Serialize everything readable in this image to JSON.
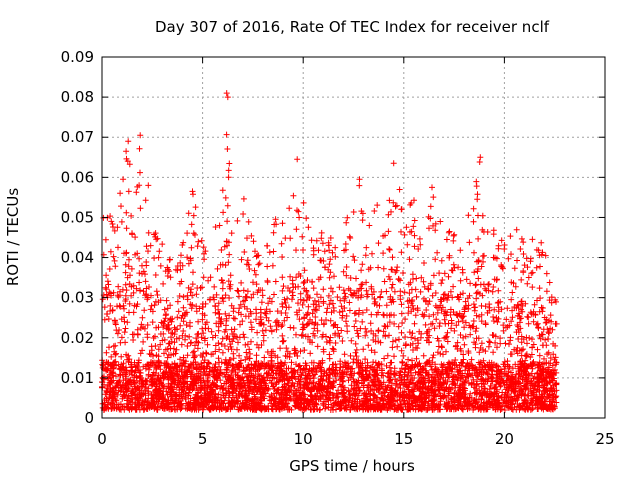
{
  "chart_data": {
    "type": "scatter",
    "title": "Day 307 of 2016, Rate Of TEC Index for receiver nclf",
    "xlabel": "GPS time / hours",
    "ylabel": "ROTI / TECUs",
    "xlim": [
      0,
      25
    ],
    "ylim": [
      0,
      0.09
    ],
    "x_ticks": [
      "0",
      "5",
      "10",
      "15",
      "20",
      "25"
    ],
    "y_ticks": [
      "0",
      "0.01",
      "0.02",
      "0.03",
      "0.04",
      "0.05",
      "0.06",
      "0.07",
      "0.08",
      "0.09"
    ],
    "grid": true,
    "marker": "+",
    "series": [
      {
        "name": "ROTI",
        "color": "#ff0000",
        "x_range": [
          0,
          22.6
        ],
        "baseline_min": 0.002,
        "baseline_typical": 0.01,
        "envelope": [
          [
            0.0,
            0.048
          ],
          [
            0.25,
            0.058
          ],
          [
            0.5,
            0.048
          ],
          [
            0.75,
            0.052
          ],
          [
            1.0,
            0.064
          ],
          [
            1.3,
            0.069
          ],
          [
            1.6,
            0.055
          ],
          [
            1.9,
            0.071
          ],
          [
            2.2,
            0.059
          ],
          [
            2.5,
            0.045
          ],
          [
            2.8,
            0.052
          ],
          [
            3.2,
            0.041
          ],
          [
            3.6,
            0.038
          ],
          [
            4.0,
            0.044
          ],
          [
            4.5,
            0.057
          ],
          [
            5.0,
            0.045
          ],
          [
            5.5,
            0.047
          ],
          [
            5.9,
            0.052
          ],
          [
            6.2,
            0.081
          ],
          [
            6.5,
            0.044
          ],
          [
            7.0,
            0.058
          ],
          [
            7.5,
            0.045
          ],
          [
            8.0,
            0.041
          ],
          [
            8.5,
            0.05
          ],
          [
            9.0,
            0.052
          ],
          [
            9.35,
            0.058
          ],
          [
            9.7,
            0.065
          ],
          [
            10.0,
            0.054
          ],
          [
            10.5,
            0.047
          ],
          [
            11.0,
            0.046
          ],
          [
            11.5,
            0.047
          ],
          [
            12.0,
            0.05
          ],
          [
            12.5,
            0.052
          ],
          [
            12.8,
            0.06
          ],
          [
            13.2,
            0.052
          ],
          [
            13.6,
            0.056
          ],
          [
            14.0,
            0.045
          ],
          [
            14.5,
            0.063
          ],
          [
            15.0,
            0.054
          ],
          [
            15.5,
            0.055
          ],
          [
            16.0,
            0.045
          ],
          [
            16.5,
            0.057
          ],
          [
            17.0,
            0.051
          ],
          [
            17.5,
            0.047
          ],
          [
            18.0,
            0.049
          ],
          [
            18.5,
            0.056
          ],
          [
            18.8,
            0.065
          ],
          [
            19.1,
            0.051
          ],
          [
            19.5,
            0.047
          ],
          [
            20.0,
            0.046
          ],
          [
            20.4,
            0.052
          ],
          [
            20.8,
            0.045
          ],
          [
            21.3,
            0.047
          ],
          [
            21.8,
            0.045
          ],
          [
            22.2,
            0.038
          ],
          [
            22.6,
            0.029
          ]
        ],
        "notable_points": [
          {
            "x": 6.2,
            "y": 0.081
          },
          {
            "x": 6.25,
            "y": 0.08
          },
          {
            "x": 1.9,
            "y": 0.0705
          },
          {
            "x": 1.3,
            "y": 0.069
          },
          {
            "x": 1.2,
            "y": 0.0665
          },
          {
            "x": 9.7,
            "y": 0.0645
          },
          {
            "x": 18.8,
            "y": 0.065
          },
          {
            "x": 14.5,
            "y": 0.0635
          },
          {
            "x": 12.8,
            "y": 0.0595
          },
          {
            "x": 2.3,
            "y": 0.058
          },
          {
            "x": 16.4,
            "y": 0.0575
          },
          {
            "x": 4.5,
            "y": 0.0565
          }
        ]
      }
    ]
  }
}
